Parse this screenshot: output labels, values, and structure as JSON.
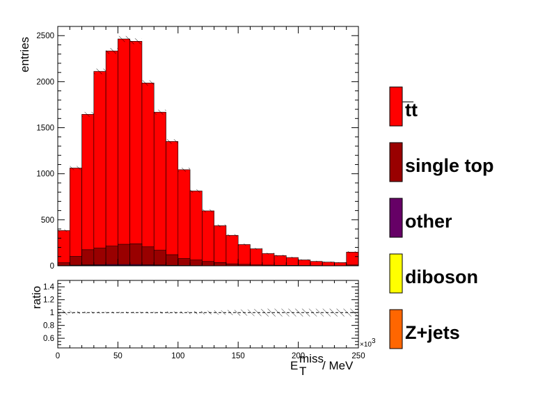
{
  "chart_data": {
    "type": "bar",
    "stacked": true,
    "x_bin_edges": [
      0,
      10,
      20,
      30,
      40,
      50,
      60,
      70,
      80,
      90,
      100,
      110,
      120,
      130,
      140,
      150,
      160,
      170,
      180,
      190,
      200,
      210,
      220,
      230,
      240,
      250
    ],
    "series": [
      {
        "name": "t̅t",
        "color": "#ff0000",
        "values": [
          350,
          960,
          1470,
          1920,
          2120,
          2230,
          2200,
          1780,
          1500,
          1230,
          965,
          750,
          550,
          400,
          310,
          215,
          175,
          125,
          105,
          85,
          60,
          45,
          38,
          33,
          140
        ]
      },
      {
        "name": "single top",
        "color": "#990000",
        "values": [
          30,
          95,
          165,
          180,
          200,
          220,
          225,
          195,
          160,
          115,
          75,
          60,
          45,
          35,
          20,
          15,
          10,
          8,
          6,
          5,
          4,
          3,
          2,
          2,
          8
        ]
      },
      {
        "name": "other",
        "color": "#660066",
        "values": [
          2,
          4,
          6,
          8,
          10,
          10,
          10,
          8,
          6,
          4,
          3,
          2,
          2,
          1,
          1,
          1,
          0,
          0,
          0,
          0,
          0,
          0,
          0,
          0,
          1
        ]
      },
      {
        "name": "diboson",
        "color": "#ffff00",
        "values": [
          0,
          1,
          1,
          1,
          1,
          1,
          1,
          1,
          1,
          1,
          0,
          0,
          0,
          0,
          0,
          0,
          0,
          0,
          0,
          0,
          0,
          0,
          0,
          0,
          0
        ]
      },
      {
        "name": "Z+jets",
        "color": "#ff6600",
        "values": [
          1,
          2,
          3,
          3,
          3,
          3,
          3,
          2,
          2,
          1,
          1,
          1,
          0,
          0,
          0,
          0,
          0,
          0,
          0,
          0,
          0,
          0,
          0,
          0,
          0
        ]
      }
    ],
    "ylabel": "entries",
    "ylim": [
      0,
      2600
    ],
    "yticks": [
      0,
      500,
      1000,
      1500,
      2000,
      2500
    ],
    "xlim": [
      0,
      250
    ],
    "xticks": [
      0,
      50,
      100,
      150,
      200,
      250
    ],
    "x_exponent_label": "×10",
    "x_exponent_power": "3",
    "xlabel_main": "E",
    "xlabel_sup": "miss",
    "xlabel_sub": "T",
    "xlabel_unit": "/ MeV",
    "ratio_panel": {
      "ylabel": "ratio",
      "ylim": [
        0.45,
        1.5
      ],
      "yticks": [
        0.6,
        0.8,
        1,
        1.2,
        1.4
      ],
      "ytick_labels": [
        "0.6",
        "0.8",
        "1",
        "1.2",
        "1.4"
      ],
      "reference": 1
    },
    "legend_position": "right",
    "grid": false
  }
}
